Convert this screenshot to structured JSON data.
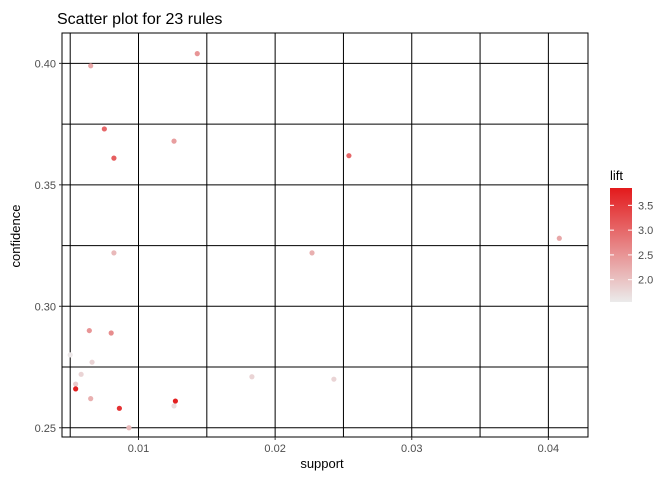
{
  "chart_data": {
    "type": "scatter",
    "title": "Scatter plot for 23 rules",
    "xlabel": "support",
    "ylabel": "confidence",
    "xlim": [
      0.0044,
      0.0429
    ],
    "ylim": [
      0.2462,
      0.4125
    ],
    "x_ticks": [
      0.01,
      0.02,
      0.03,
      0.04
    ],
    "x_tick_labels": [
      "0.01",
      "0.02",
      "0.03",
      "0.04"
    ],
    "y_ticks": [
      0.25,
      0.3,
      0.35,
      0.4
    ],
    "y_tick_labels": [
      "0.25",
      "0.30",
      "0.35",
      "0.40"
    ],
    "grid": true,
    "color_scale": {
      "name": "lift",
      "low_color": "#ebebeb",
      "high_color": "#e31a1c",
      "range": [
        1.55,
        3.85
      ],
      "ticks": [
        2.0,
        2.5,
        3.0,
        3.5
      ],
      "tick_labels": [
        "2.0",
        "2.5",
        "3.0",
        "3.5"
      ],
      "legend_position": "right"
    },
    "points": [
      {
        "x": 0.0065,
        "y": 0.399,
        "lift": 2.3
      },
      {
        "x": 0.0143,
        "y": 0.404,
        "lift": 2.5
      },
      {
        "x": 0.0075,
        "y": 0.373,
        "lift": 3.0
      },
      {
        "x": 0.0082,
        "y": 0.361,
        "lift": 3.1
      },
      {
        "x": 0.0126,
        "y": 0.368,
        "lift": 2.4
      },
      {
        "x": 0.0254,
        "y": 0.362,
        "lift": 3.0
      },
      {
        "x": 0.0408,
        "y": 0.328,
        "lift": 2.3
      },
      {
        "x": 0.0082,
        "y": 0.322,
        "lift": 2.1
      },
      {
        "x": 0.0227,
        "y": 0.322,
        "lift": 2.2
      },
      {
        "x": 0.0064,
        "y": 0.29,
        "lift": 2.5
      },
      {
        "x": 0.008,
        "y": 0.289,
        "lift": 2.6
      },
      {
        "x": 0.005,
        "y": 0.28,
        "lift": 1.6
      },
      {
        "x": 0.0058,
        "y": 0.272,
        "lift": 1.8
      },
      {
        "x": 0.0066,
        "y": 0.277,
        "lift": 1.8
      },
      {
        "x": 0.0054,
        "y": 0.268,
        "lift": 1.9
      },
      {
        "x": 0.0183,
        "y": 0.271,
        "lift": 1.8
      },
      {
        "x": 0.0243,
        "y": 0.27,
        "lift": 1.8
      },
      {
        "x": 0.0054,
        "y": 0.266,
        "lift": 3.8
      },
      {
        "x": 0.0065,
        "y": 0.262,
        "lift": 2.2
      },
      {
        "x": 0.0086,
        "y": 0.258,
        "lift": 3.6
      },
      {
        "x": 0.0127,
        "y": 0.261,
        "lift": 3.8
      },
      {
        "x": 0.0126,
        "y": 0.259,
        "lift": 1.7
      },
      {
        "x": 0.0093,
        "y": 0.25,
        "lift": 2.1
      }
    ]
  }
}
